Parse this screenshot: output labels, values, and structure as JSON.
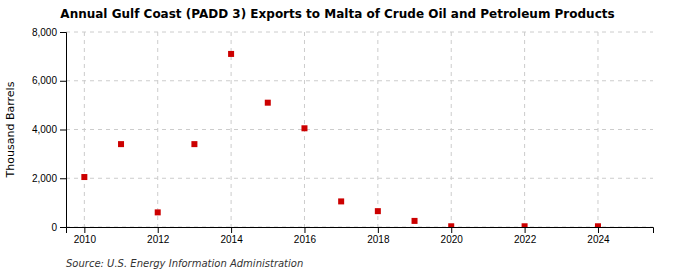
{
  "chart_data": {
    "type": "scatter",
    "title": "Annual Gulf Coast (PADD 3) Exports to Malta of Crude Oil and Petroleum Products",
    "y_label": "Thousand Barrels",
    "annotation": "Source: U.S. Energy Information Administration",
    "x": [
      2010,
      2011,
      2012,
      2013,
      2014,
      2015,
      2016,
      2017,
      2018,
      2019,
      2020,
      2022,
      2024
    ],
    "values": [
      2050,
      3400,
      600,
      3400,
      7100,
      5100,
      4050,
      1050,
      650,
      250,
      30,
      30,
      30
    ],
    "color": "#cc0000",
    "marker": "square",
    "xlim": [
      2009.5,
      2025.5
    ],
    "ylim": [
      0,
      8000
    ],
    "xticks": [
      2010,
      2012,
      2014,
      2016,
      2018,
      2020,
      2022,
      2024
    ],
    "yticks": [
      0,
      {
        "value": 2000,
        "label": "2,000"
      },
      {
        "value": 4000,
        "label": "4,000"
      },
      {
        "value": 6000,
        "label": "6,000"
      },
      {
        "value": 8000,
        "label": "8,000"
      }
    ],
    "grid": true
  }
}
